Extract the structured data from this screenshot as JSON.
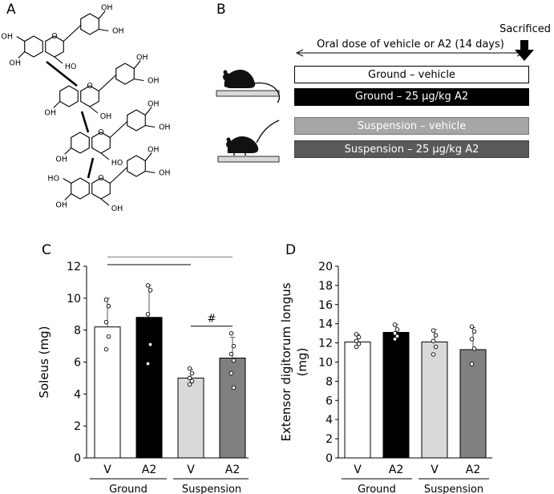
{
  "panels": {
    "a": "A",
    "b": "B",
    "c": "C",
    "d": "D"
  },
  "molecule": {
    "oh_labels": [
      "OH",
      "OH",
      "HO",
      "OH",
      "OH",
      "OH",
      "OH",
      "OH",
      "OH",
      "OH",
      "OH",
      "HO",
      "OH",
      "OH",
      "OH",
      "OH",
      "OH",
      "HO",
      "OH",
      "OH",
      "OH",
      "OH",
      "OH",
      "OH",
      "OH",
      "OH",
      "OH",
      "HO",
      "OH",
      "OH"
    ],
    "o_label": "O"
  },
  "protocol": {
    "sacrificed": "Sacrificed",
    "oral_dose": "Oral dose of vehicle or A2 (14 days)",
    "groups": [
      {
        "label": "Ground – vehicle",
        "fill": "#ffffff",
        "text": "#000000"
      },
      {
        "label": "Ground – 25 μg/kg A2",
        "fill": "#000000",
        "text": "#ffffff"
      },
      {
        "label": "Suspension – vehicle",
        "fill": "#a6a6a6",
        "text": "#ffffff"
      },
      {
        "label": "Suspension – 25 μg/kg A2",
        "fill": "#595959",
        "text": "#ffffff"
      }
    ]
  },
  "chart_data": [
    {
      "type": "bar",
      "panel": "C",
      "ylabel": "Soleus (mg)",
      "ylim": [
        0,
        12
      ],
      "yticks": [
        0,
        2,
        4,
        6,
        8,
        10,
        12
      ],
      "categories": [
        "V",
        "A2",
        "V",
        "A2"
      ],
      "groups": [
        "Ground",
        "Suspension"
      ],
      "colors": [
        "#ffffff",
        "#000000",
        "#d9d9d9",
        "#808080"
      ],
      "values": [
        8.2,
        8.8,
        5.0,
        6.25
      ],
      "errors": [
        1.8,
        2.0,
        0.55,
        1.3
      ],
      "points": [
        [
          9.9,
          9.5,
          8.5,
          7.6,
          6.8
        ],
        [
          10.8,
          10.5,
          9.0,
          7.1,
          5.9
        ],
        [
          5.6,
          5.3,
          5.0,
          4.8,
          4.6
        ],
        [
          7.8,
          7.0,
          6.5,
          6.1,
          5.3,
          4.4
        ]
      ],
      "annotations": [
        {
          "label": "**",
          "from": 0,
          "to": 2,
          "level": 12.1
        },
        {
          "label": "*",
          "from": 0,
          "to": 3,
          "level": 12.6
        },
        {
          "label": "#",
          "from": 2,
          "to": 3,
          "level": 8.25
        }
      ]
    },
    {
      "type": "bar",
      "panel": "D",
      "ylabel": "Extensor digitorum longus (mg)",
      "ylabel_lines": [
        "Extensor digitorum longus",
        "(mg)"
      ],
      "ylim": [
        0,
        20
      ],
      "yticks": [
        0,
        2,
        4,
        6,
        8,
        10,
        12,
        14,
        16,
        18,
        20
      ],
      "categories": [
        "V",
        "A2",
        "V",
        "A2"
      ],
      "groups": [
        "Ground",
        "Suspension"
      ],
      "colors": [
        "#ffffff",
        "#000000",
        "#d9d9d9",
        "#808080"
      ],
      "values": [
        12.1,
        13.1,
        12.1,
        11.3
      ],
      "errors": [
        0.8,
        0.8,
        1.3,
        2.3
      ],
      "points": [
        [
          12.9,
          12.6,
          12.2,
          11.9,
          11.6
        ],
        [
          13.9,
          13.4,
          13.0,
          12.7,
          12.4
        ],
        [
          13.3,
          12.8,
          12.2,
          11.6,
          10.8
        ],
        [
          13.7,
          13.2,
          12.4,
          11.4,
          9.8
        ]
      ]
    }
  ]
}
